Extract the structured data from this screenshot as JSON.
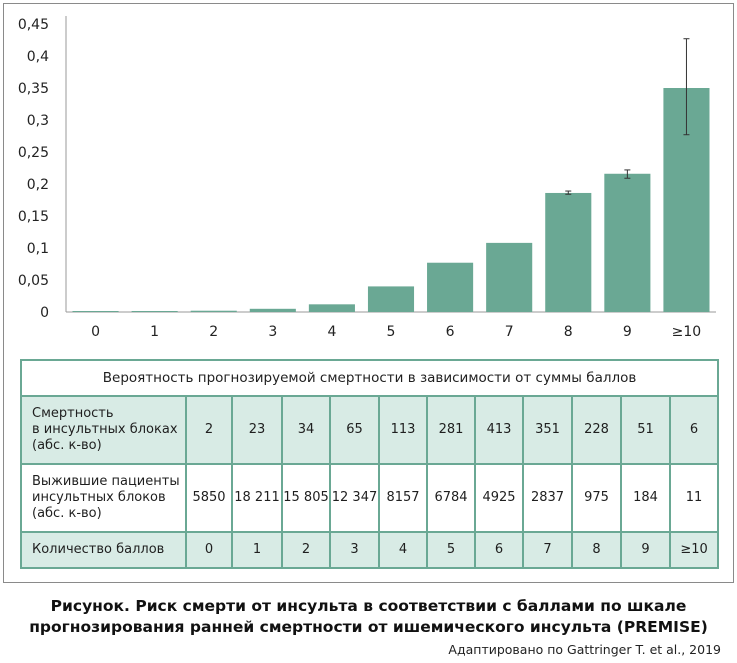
{
  "chart_data": {
    "type": "bar",
    "categories": [
      "0",
      "1",
      "2",
      "3",
      "4",
      "5",
      "6",
      "7",
      "8",
      "9",
      "≥10"
    ],
    "values": [
      0.0003,
      0.001,
      0.002,
      0.005,
      0.012,
      0.04,
      0.077,
      0.108,
      0.186,
      0.216,
      0.35
    ],
    "error_bars": [
      null,
      null,
      null,
      null,
      null,
      null,
      null,
      null,
      [
        0.184,
        0.189
      ],
      [
        0.209,
        0.222
      ],
      [
        0.277,
        0.427
      ]
    ],
    "y_ticks": [
      "0",
      "0,05",
      "0,1",
      "0,15",
      "0,2",
      "0,25",
      "0,3",
      "0,35",
      "0,4",
      "0,45"
    ],
    "ylim": [
      0,
      0.45
    ],
    "bar_color": "#6aa894",
    "grid": false,
    "title": "",
    "xlabel": "",
    "ylabel": ""
  },
  "table": {
    "title": "Вероятность прогнозируемой смертности в зависимости от суммы баллов",
    "rows": [
      {
        "label": [
          "Смертность",
          "в инсультных блоках",
          "(абс. к-во)"
        ],
        "values": [
          "2",
          "23",
          "34",
          "65",
          "113",
          "281",
          "413",
          "351",
          "228",
          "51",
          "6"
        ]
      },
      {
        "label": [
          "Выжившие пациенты",
          "инсультных блоков",
          "(абс. к-во)"
        ],
        "values": [
          "5850",
          "18 211",
          "15 805",
          "12 347",
          "8157",
          "6784",
          "4925",
          "2837",
          "975",
          "184",
          "11"
        ]
      },
      {
        "label": [
          "Количество баллов"
        ],
        "values": [
          "0",
          "1",
          "2",
          "3",
          "4",
          "5",
          "6",
          "7",
          "8",
          "9",
          "≥10"
        ]
      }
    ]
  },
  "caption": {
    "line1": "Рисунок. Риск смерти от инсульта в соответствии с баллами по шкале",
    "line2": "прогнозирования ранней смертности от ишемического инсульта (PREMISE)",
    "source": "Адаптировано по Gattringer T. et al., 2019"
  }
}
